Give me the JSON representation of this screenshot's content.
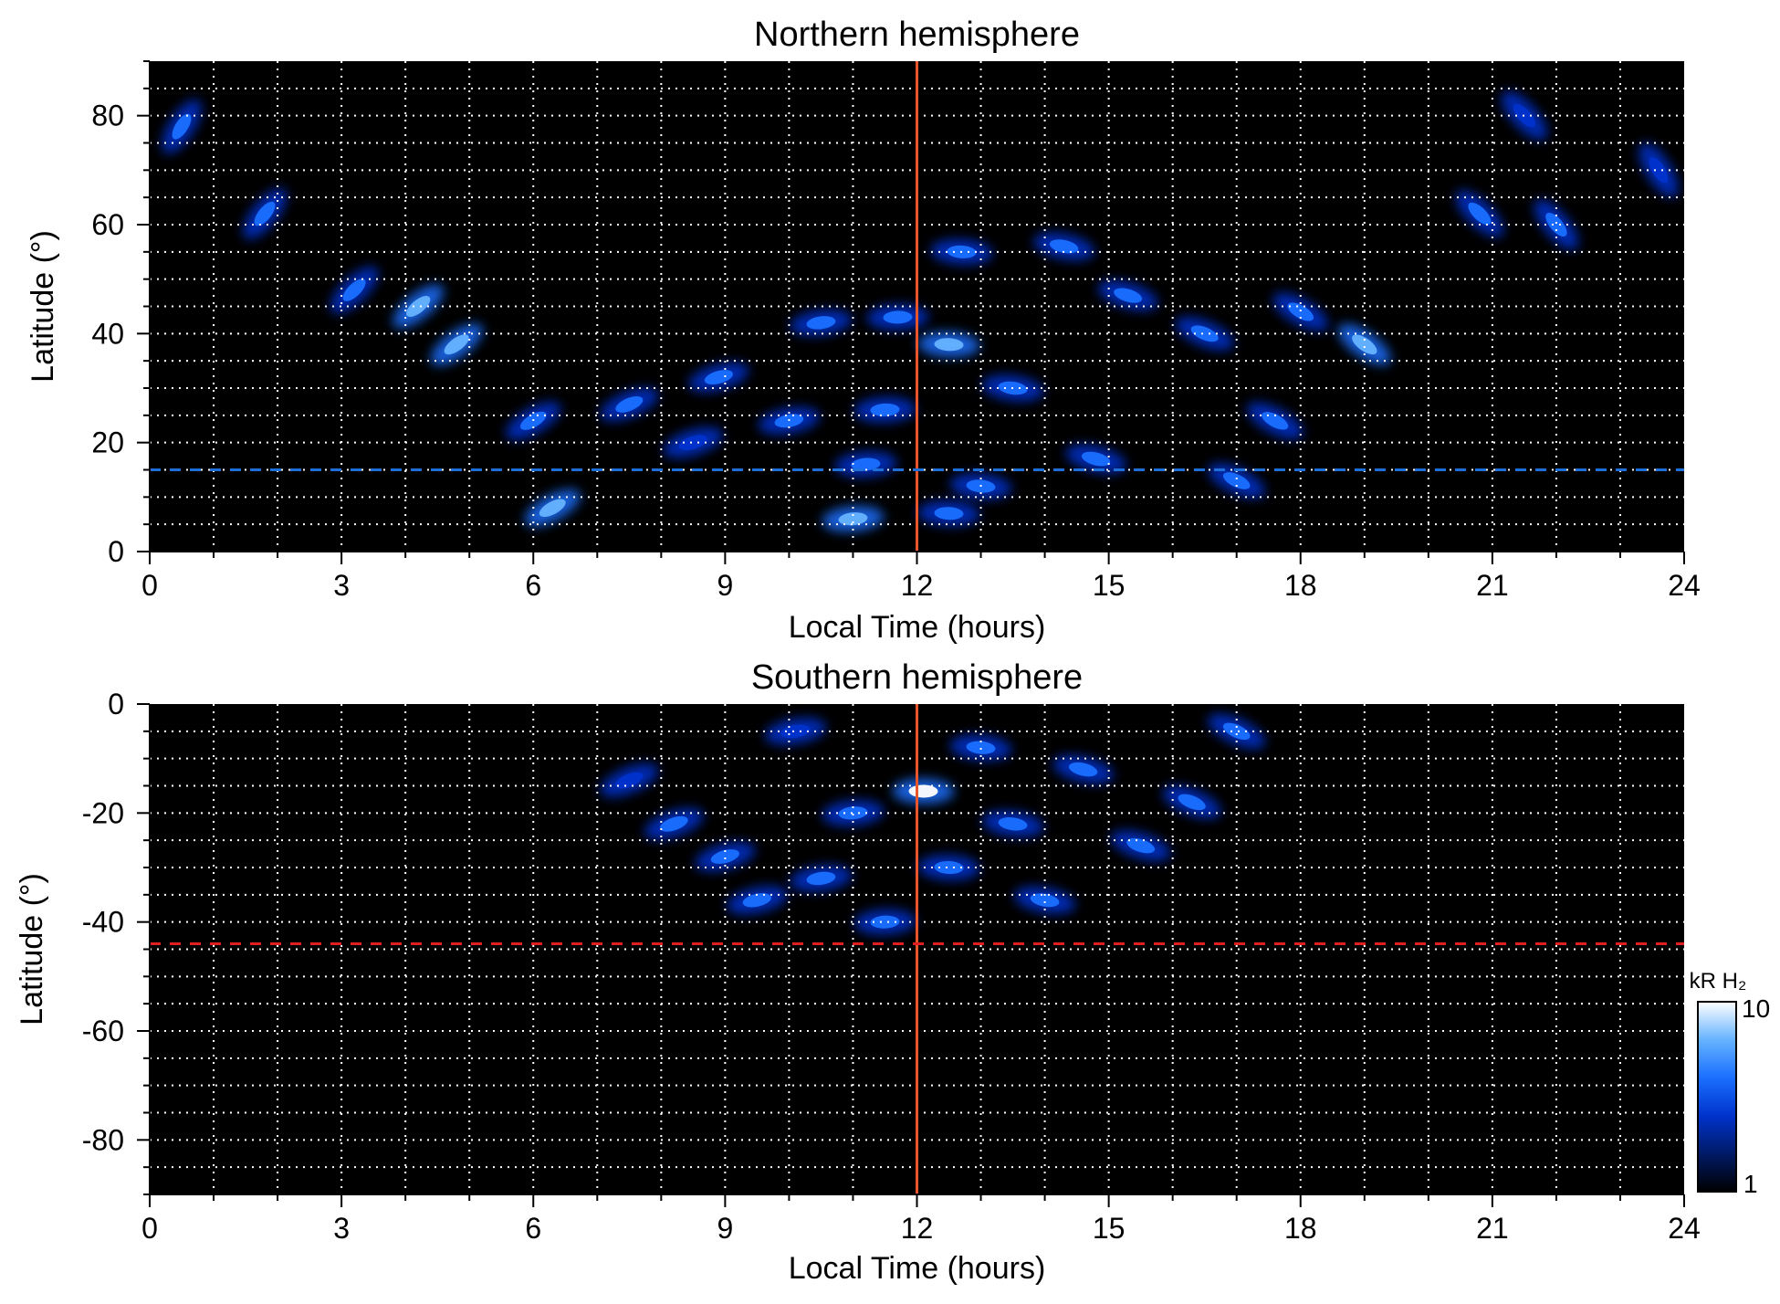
{
  "chart_data": [
    {
      "type": "heatmap",
      "title": "Northern hemisphere",
      "xlabel": "Local Time (hours)",
      "ylabel": "Latitude (°)",
      "xlim": [
        0,
        24
      ],
      "ylim": [
        0,
        90
      ],
      "xticks": [
        "0",
        "3",
        "6",
        "9",
        "12",
        "15",
        "18",
        "21",
        "24"
      ],
      "yticks": [
        "0",
        "20",
        "40",
        "60",
        "80"
      ],
      "grid": true,
      "reference_lines": [
        {
          "orientation": "vertical",
          "value": 12,
          "color": "#e8552b",
          "style": "solid"
        },
        {
          "orientation": "horizontal",
          "value": 15,
          "color": "#1f6fd8",
          "style": "dashed"
        }
      ],
      "emission_peaks": [
        {
          "x": 6.3,
          "y": 8,
          "level": 0.75
        },
        {
          "x": 4.8,
          "y": 38,
          "level": 0.8
        },
        {
          "x": 4.2,
          "y": 45,
          "level": 0.7
        },
        {
          "x": 3.2,
          "y": 48,
          "level": 0.6
        },
        {
          "x": 1.8,
          "y": 62,
          "level": 0.55
        },
        {
          "x": 0.5,
          "y": 78,
          "level": 0.5
        },
        {
          "x": 6.0,
          "y": 24,
          "level": 0.55
        },
        {
          "x": 7.5,
          "y": 27,
          "level": 0.5
        },
        {
          "x": 8.5,
          "y": 20,
          "level": 0.45
        },
        {
          "x": 8.9,
          "y": 32,
          "level": 0.55
        },
        {
          "x": 10.0,
          "y": 24,
          "level": 0.6
        },
        {
          "x": 10.5,
          "y": 42,
          "level": 0.5
        },
        {
          "x": 11.0,
          "y": 6,
          "level": 0.75
        },
        {
          "x": 11.2,
          "y": 16,
          "level": 0.6
        },
        {
          "x": 11.5,
          "y": 26,
          "level": 0.55
        },
        {
          "x": 11.7,
          "y": 43,
          "level": 0.6
        },
        {
          "x": 12.5,
          "y": 7,
          "level": 0.6
        },
        {
          "x": 12.5,
          "y": 38,
          "level": 0.7
        },
        {
          "x": 12.7,
          "y": 55,
          "level": 0.6
        },
        {
          "x": 13.0,
          "y": 12,
          "level": 0.55
        },
        {
          "x": 13.5,
          "y": 30,
          "level": 0.6
        },
        {
          "x": 14.3,
          "y": 56,
          "level": 0.6
        },
        {
          "x": 15.3,
          "y": 47,
          "level": 0.55
        },
        {
          "x": 14.8,
          "y": 17,
          "level": 0.5
        },
        {
          "x": 16.5,
          "y": 40,
          "level": 0.5
        },
        {
          "x": 17.0,
          "y": 13,
          "level": 0.55
        },
        {
          "x": 17.6,
          "y": 24,
          "level": 0.55
        },
        {
          "x": 19.0,
          "y": 38,
          "level": 0.7
        },
        {
          "x": 18.0,
          "y": 44,
          "level": 0.6
        },
        {
          "x": 20.8,
          "y": 62,
          "level": 0.6
        },
        {
          "x": 22.0,
          "y": 60,
          "level": 0.65
        },
        {
          "x": 23.6,
          "y": 70,
          "level": 0.45
        },
        {
          "x": 21.5,
          "y": 80,
          "level": 0.4
        }
      ]
    },
    {
      "type": "heatmap",
      "title": "Southern hemisphere",
      "xlabel": "Local Time (hours)",
      "ylabel": "Latitude (°)",
      "xlim": [
        0,
        24
      ],
      "ylim": [
        -90,
        0
      ],
      "xticks": [
        "0",
        "3",
        "6",
        "9",
        "12",
        "15",
        "18",
        "21",
        "24"
      ],
      "yticks": [
        "0",
        "-20",
        "-40",
        "-60",
        "-80"
      ],
      "grid": true,
      "reference_lines": [
        {
          "orientation": "vertical",
          "value": 12,
          "color": "#e8552b",
          "style": "solid"
        },
        {
          "orientation": "horizontal",
          "value": -44,
          "color": "#e02020",
          "style": "dashed"
        }
      ],
      "emission_peaks": [
        {
          "x": 7.5,
          "y": -14,
          "level": 0.45
        },
        {
          "x": 8.2,
          "y": -22,
          "level": 0.5
        },
        {
          "x": 9.0,
          "y": -28,
          "level": 0.5
        },
        {
          "x": 9.5,
          "y": -36,
          "level": 0.55
        },
        {
          "x": 10.1,
          "y": -5,
          "level": 0.45
        },
        {
          "x": 10.5,
          "y": -32,
          "level": 0.55
        },
        {
          "x": 11.0,
          "y": -20,
          "level": 0.55
        },
        {
          "x": 11.5,
          "y": -40,
          "level": 0.5
        },
        {
          "x": 12.1,
          "y": -16,
          "level": 0.9
        },
        {
          "x": 12.5,
          "y": -30,
          "level": 0.55
        },
        {
          "x": 13.0,
          "y": -8,
          "level": 0.5
        },
        {
          "x": 13.5,
          "y": -22,
          "level": 0.55
        },
        {
          "x": 14.0,
          "y": -36,
          "level": 0.5
        },
        {
          "x": 14.6,
          "y": -12,
          "level": 0.55
        },
        {
          "x": 15.5,
          "y": -26,
          "level": 0.5
        },
        {
          "x": 16.3,
          "y": -18,
          "level": 0.6
        },
        {
          "x": 17.0,
          "y": -5,
          "level": 0.5
        }
      ],
      "colorbar": {
        "label": "kR H₂",
        "min_label": "1",
        "max_label": "10",
        "scale": "log",
        "colors": [
          "#000000",
          "#001a66",
          "#0033cc",
          "#1a6fff",
          "#66b3ff",
          "#ffffff"
        ]
      }
    }
  ]
}
